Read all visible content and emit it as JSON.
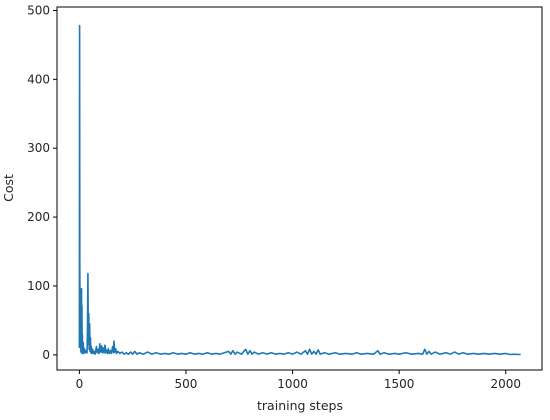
{
  "chart_data": {
    "type": "line",
    "title": "",
    "xlabel": "training steps",
    "ylabel": "Cost",
    "xlim": [
      -105,
      2170
    ],
    "ylim": [
      -22,
      505
    ],
    "x_ticks": [
      0,
      500,
      1000,
      1500,
      2000
    ],
    "y_ticks": [
      0,
      100,
      200,
      300,
      400,
      500
    ],
    "grid": false,
    "legend": "none",
    "series": [
      {
        "color": "#1f77b4",
        "points": [
          [
            0,
            10
          ],
          [
            1,
            478
          ],
          [
            2,
            130
          ],
          [
            3,
            55
          ],
          [
            4,
            80
          ],
          [
            5,
            20
          ],
          [
            6,
            45
          ],
          [
            7,
            5
          ],
          [
            8,
            70
          ],
          [
            9,
            3
          ],
          [
            10,
            96
          ],
          [
            11,
            8
          ],
          [
            12,
            72
          ],
          [
            13,
            4
          ],
          [
            14,
            30
          ],
          [
            15,
            2
          ],
          [
            18,
            18
          ],
          [
            20,
            2
          ],
          [
            24,
            9
          ],
          [
            28,
            3
          ],
          [
            32,
            6
          ],
          [
            36,
            3
          ],
          [
            38,
            40
          ],
          [
            40,
            118
          ],
          [
            42,
            15
          ],
          [
            44,
            60
          ],
          [
            46,
            8
          ],
          [
            48,
            45
          ],
          [
            50,
            5
          ],
          [
            52,
            25
          ],
          [
            54,
            3
          ],
          [
            56,
            12
          ],
          [
            58,
            2
          ],
          [
            62,
            8
          ],
          [
            66,
            2
          ],
          [
            70,
            5
          ],
          [
            74,
            1
          ],
          [
            80,
            12
          ],
          [
            84,
            3
          ],
          [
            88,
            8
          ],
          [
            92,
            2
          ],
          [
            96,
            16
          ],
          [
            100,
            4
          ],
          [
            104,
            13
          ],
          [
            108,
            3
          ],
          [
            112,
            10
          ],
          [
            116,
            3
          ],
          [
            120,
            14
          ],
          [
            124,
            3
          ],
          [
            128,
            7
          ],
          [
            132,
            2
          ],
          [
            136,
            9
          ],
          [
            140,
            2
          ],
          [
            146,
            6
          ],
          [
            150,
            2
          ],
          [
            156,
            12
          ],
          [
            160,
            3
          ],
          [
            162,
            20
          ],
          [
            166,
            4
          ],
          [
            170,
            9
          ],
          [
            174,
            2
          ],
          [
            180,
            5
          ],
          [
            190,
            2
          ],
          [
            200,
            4
          ],
          [
            210,
            1
          ],
          [
            220,
            3
          ],
          [
            230,
            1
          ],
          [
            240,
            4
          ],
          [
            250,
            1
          ],
          [
            260,
            5
          ],
          [
            270,
            1
          ],
          [
            280,
            3
          ],
          [
            300,
            1
          ],
          [
            320,
            4
          ],
          [
            340,
            1
          ],
          [
            360,
            3
          ],
          [
            380,
            1
          ],
          [
            400,
            2
          ],
          [
            420,
            1
          ],
          [
            440,
            3
          ],
          [
            460,
            1
          ],
          [
            480,
            2
          ],
          [
            500,
            1
          ],
          [
            520,
            3
          ],
          [
            540,
            1
          ],
          [
            560,
            2
          ],
          [
            580,
            1
          ],
          [
            600,
            3
          ],
          [
            620,
            1
          ],
          [
            640,
            2
          ],
          [
            660,
            1
          ],
          [
            680,
            3
          ],
          [
            700,
            5
          ],
          [
            710,
            1
          ],
          [
            720,
            6
          ],
          [
            730,
            1
          ],
          [
            740,
            4
          ],
          [
            760,
            1
          ],
          [
            780,
            8
          ],
          [
            790,
            1
          ],
          [
            800,
            6
          ],
          [
            810,
            1
          ],
          [
            820,
            4
          ],
          [
            840,
            1
          ],
          [
            860,
            3
          ],
          [
            880,
            1
          ],
          [
            900,
            3
          ],
          [
            920,
            1
          ],
          [
            940,
            2
          ],
          [
            960,
            1
          ],
          [
            980,
            3
          ],
          [
            1000,
            1
          ],
          [
            1020,
            4
          ],
          [
            1040,
            1
          ],
          [
            1060,
            6
          ],
          [
            1070,
            1
          ],
          [
            1080,
            8
          ],
          [
            1090,
            1
          ],
          [
            1100,
            5
          ],
          [
            1110,
            1
          ],
          [
            1120,
            7
          ],
          [
            1130,
            1
          ],
          [
            1150,
            3
          ],
          [
            1170,
            1
          ],
          [
            1200,
            3
          ],
          [
            1220,
            1
          ],
          [
            1250,
            2
          ],
          [
            1280,
            1
          ],
          [
            1300,
            3
          ],
          [
            1320,
            1
          ],
          [
            1350,
            2
          ],
          [
            1380,
            1
          ],
          [
            1400,
            6
          ],
          [
            1410,
            1
          ],
          [
            1430,
            3
          ],
          [
            1450,
            1
          ],
          [
            1480,
            2
          ],
          [
            1500,
            1
          ],
          [
            1530,
            3
          ],
          [
            1560,
            1
          ],
          [
            1590,
            2
          ],
          [
            1610,
            1
          ],
          [
            1620,
            8
          ],
          [
            1630,
            1
          ],
          [
            1640,
            5
          ],
          [
            1650,
            1
          ],
          [
            1670,
            4
          ],
          [
            1690,
            1
          ],
          [
            1720,
            3
          ],
          [
            1740,
            1
          ],
          [
            1760,
            4
          ],
          [
            1780,
            1
          ],
          [
            1800,
            3
          ],
          [
            1820,
            1
          ],
          [
            1850,
            2
          ],
          [
            1870,
            1
          ],
          [
            1900,
            2
          ],
          [
            1920,
            1
          ],
          [
            1950,
            2
          ],
          [
            1970,
            1
          ],
          [
            2000,
            2
          ],
          [
            2020,
            0.5
          ],
          [
            2040,
            1
          ],
          [
            2060,
            0.5
          ],
          [
            2070,
            0.5
          ]
        ]
      }
    ]
  }
}
